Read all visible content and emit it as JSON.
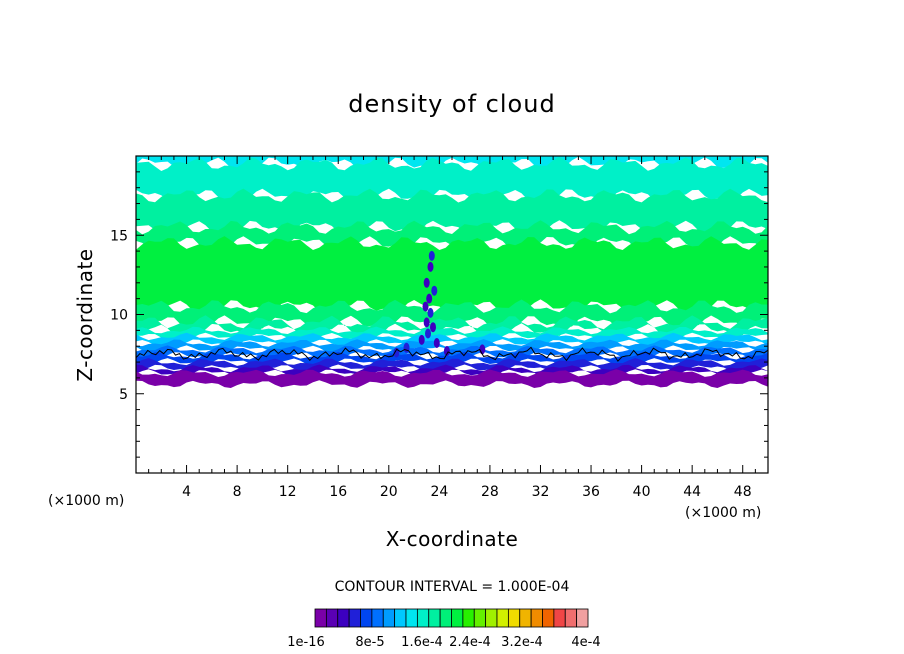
{
  "chart_data": {
    "type": "heatmap",
    "title": "density of cloud",
    "xlabel": "X-coordinate",
    "ylabel": "Z-coordinate",
    "x_unit_label": "(×1000 m)",
    "x_unit_label_right": "(×1000 m)",
    "xlim": [
      0,
      50
    ],
    "ylim": [
      0,
      20
    ],
    "x_ticks": [
      4,
      8,
      12,
      16,
      20,
      24,
      28,
      32,
      36,
      40,
      44,
      48
    ],
    "y_ticks": [
      5,
      10,
      15
    ],
    "contour_interval_text": "CONTOUR INTERVAL = 1.000E-04",
    "colorbar": {
      "labels": [
        "1e-16",
        "8e-5",
        "1.6e-4",
        "2.4e-4",
        "3.2e-4",
        "4e-4"
      ],
      "colors": [
        "#7a00a8",
        "#5a00b4",
        "#3c00c0",
        "#2020d8",
        "#0046f0",
        "#0070ff",
        "#009cff",
        "#00c8ff",
        "#00e6f0",
        "#00f0c8",
        "#00f0a0",
        "#00f078",
        "#00f040",
        "#28f000",
        "#64f000",
        "#a0f000",
        "#d2f000",
        "#f0dc00",
        "#f0b400",
        "#f08c00",
        "#f06400",
        "#f04646",
        "#f06e6e",
        "#f0a0a0"
      ]
    },
    "bands": [
      {
        "z_bottom": 19.5,
        "z_top": 20.0,
        "color": "#00e6f0"
      },
      {
        "z_bottom": 17.5,
        "z_top": 19.5,
        "color": "#00f0c8"
      },
      {
        "z_bottom": 15.5,
        "z_top": 17.5,
        "color": "#00f0a0"
      },
      {
        "z_bottom": 14.5,
        "z_top": 15.5,
        "color": "#00f078"
      },
      {
        "z_bottom": 10.5,
        "z_top": 14.5,
        "color": "#00f040"
      },
      {
        "z_bottom": 9.5,
        "z_top": 10.5,
        "color": "#00f078"
      },
      {
        "z_bottom": 9.0,
        "z_top": 9.5,
        "color": "#00f0a0"
      },
      {
        "z_bottom": 8.6,
        "z_top": 9.0,
        "color": "#00f0c8"
      },
      {
        "z_bottom": 8.2,
        "z_top": 8.6,
        "color": "#00c8ff"
      },
      {
        "z_bottom": 7.8,
        "z_top": 8.2,
        "color": "#009cff"
      },
      {
        "z_bottom": 7.4,
        "z_top": 7.8,
        "color": "#0070ff"
      },
      {
        "z_bottom": 7.0,
        "z_top": 7.4,
        "color": "#0046f0"
      },
      {
        "z_bottom": 6.6,
        "z_top": 7.0,
        "color": "#2020d8"
      },
      {
        "z_bottom": 6.3,
        "z_top": 6.6,
        "color": "#3c00c0"
      },
      {
        "z_bottom": 5.6,
        "z_top": 6.3,
        "color": "#7a00a8"
      }
    ]
  }
}
